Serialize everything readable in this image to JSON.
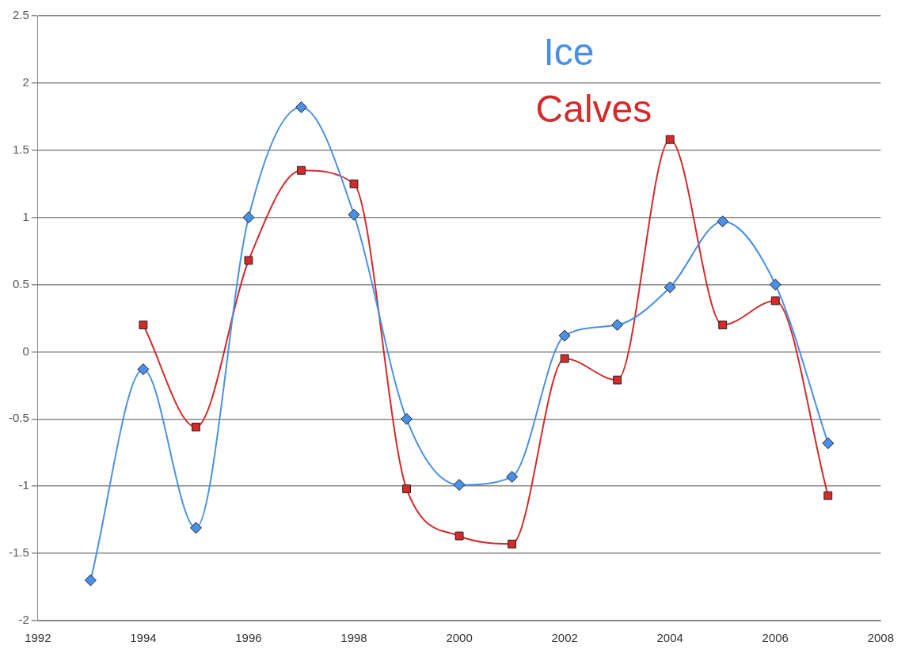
{
  "chart_data": {
    "type": "line",
    "x": [
      1993,
      1994,
      1995,
      1996,
      1997,
      1998,
      1999,
      2000,
      2001,
      2002,
      2003,
      2004,
      2005,
      2006,
      2007
    ],
    "series": [
      {
        "name": "Ice",
        "color": "#4a90e8",
        "marker": "diamond",
        "values": [
          -1.7,
          -0.13,
          -1.31,
          1.0,
          1.82,
          1.02,
          -0.5,
          -0.99,
          -0.93,
          0.12,
          0.2,
          0.48,
          0.97,
          0.5,
          -0.68
        ]
      },
      {
        "name": "Calves",
        "color": "#d42a2a",
        "marker": "square",
        "x": [
          1994,
          1995,
          1996,
          1997,
          1998,
          1999,
          2000,
          2001,
          2002,
          2003,
          2004,
          2005,
          2006,
          2007
        ],
        "values": [
          0.2,
          -0.56,
          0.68,
          1.35,
          1.25,
          -1.02,
          -1.37,
          -1.43,
          -0.05,
          -0.21,
          1.58,
          0.2,
          0.38,
          -1.07
        ]
      }
    ],
    "xlim": [
      1992,
      2008
    ],
    "xticks": [
      1992,
      1994,
      1996,
      1998,
      2000,
      2002,
      2004,
      2006,
      2008
    ],
    "ylim": [
      -2,
      2.5
    ],
    "yticks": [
      -2,
      -1.5,
      -1,
      -0.5,
      0,
      0.5,
      1,
      1.5,
      2,
      2.5
    ],
    "grid": "y",
    "legend": "top"
  }
}
